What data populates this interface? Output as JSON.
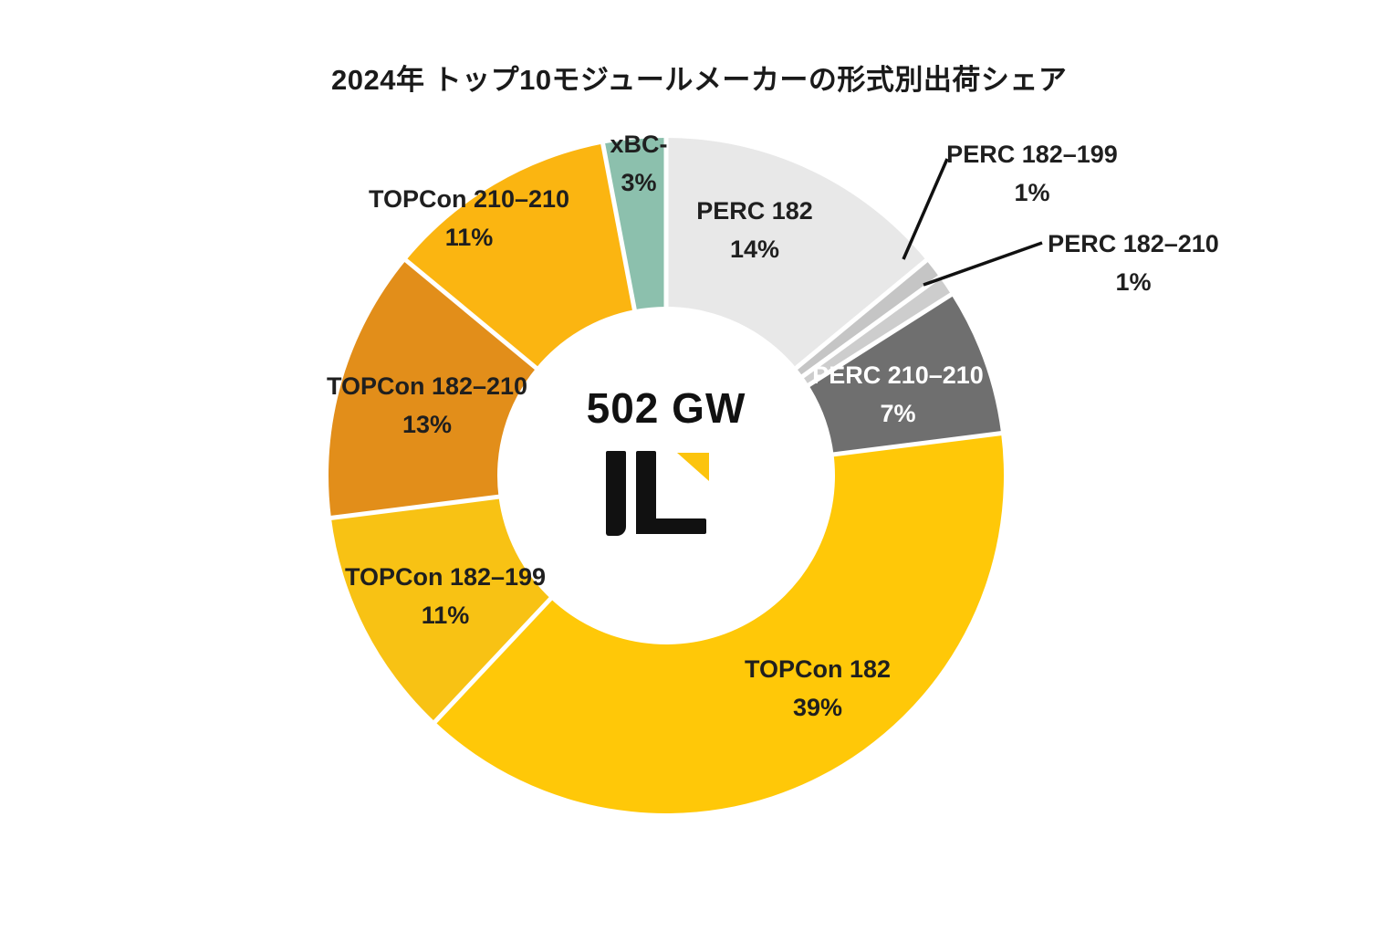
{
  "title": "2024年 トップ10モジュールメーカーの形式別出荷シェア",
  "center": {
    "total": "502 GW",
    "logo": "infolink-il-logo"
  },
  "brand_colors": {
    "logo_black": "#111111",
    "logo_yellow": "#FCC40D"
  },
  "chart_data": {
    "type": "pie",
    "subtype": "donut",
    "title": "2024年 トップ10モジュールメーカーの形式別出荷シェア",
    "center_label": "502 GW",
    "unit": "%",
    "start_angle_deg": 0,
    "direction": "clockwise",
    "donut_hole_ratio": 0.5,
    "legend_position": "none",
    "total_percent": 100,
    "segments": [
      {
        "name": "PERC 182",
        "value": 14,
        "pct_text": "14%",
        "color": "#E8E8E8",
        "text_color": "#1f1f1f",
        "label_placement": "inside"
      },
      {
        "name": "PERC 182–199",
        "value": 1,
        "pct_text": "1%",
        "color": "#C5C5C5",
        "text_color": "#1f1f1f",
        "label_placement": "callout"
      },
      {
        "name": "PERC 182–210",
        "value": 1,
        "pct_text": "1%",
        "color": "#CDCDCD",
        "text_color": "#1f1f1f",
        "label_placement": "callout"
      },
      {
        "name": "PERC 210–210",
        "value": 7,
        "pct_text": "7%",
        "color": "#6F6F6F",
        "text_color": "#ffffff",
        "label_placement": "inside"
      },
      {
        "name": "TOPCon 182",
        "value": 39,
        "pct_text": "39%",
        "color": "#FFC808",
        "text_color": "#1f1f1f",
        "label_placement": "inside"
      },
      {
        "name": "TOPCon 182–199",
        "value": 11,
        "pct_text": "11%",
        "color": "#F8C214",
        "text_color": "#1f1f1f",
        "label_placement": "inside"
      },
      {
        "name": "TOPCon 182–210",
        "value": 13,
        "pct_text": "13%",
        "color": "#E28E1A",
        "text_color": "#1f1f1f",
        "label_placement": "inside"
      },
      {
        "name": "TOPCon 210–210",
        "value": 11,
        "pct_text": "11%",
        "color": "#FBB511",
        "text_color": "#1f1f1f",
        "label_placement": "inside"
      },
      {
        "name": "xBC-",
        "value": 3,
        "pct_text": "3%",
        "color": "#8CC0AD",
        "text_color": "#1f1f1f",
        "label_placement": "inside"
      }
    ]
  }
}
